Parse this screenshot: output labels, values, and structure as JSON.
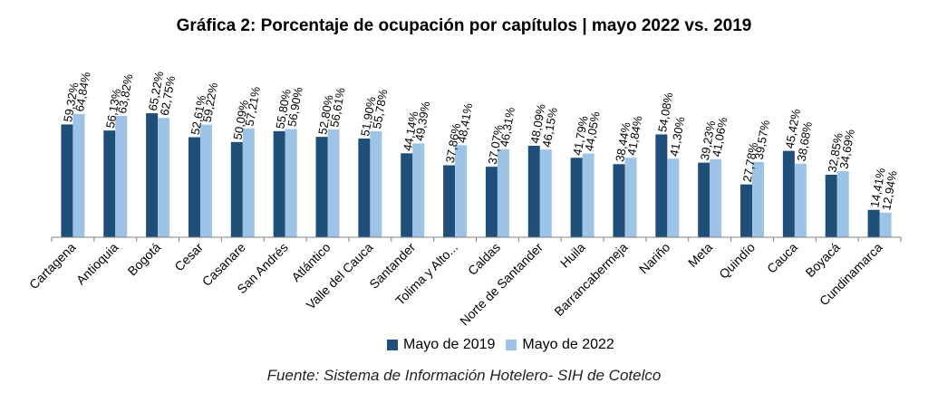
{
  "title": "Gráfica 2: Porcentaje de ocupación por capítulos | mayo 2022 vs. 2019",
  "source": "Fuente: Sistema de Información Hotelero- SIH de Cotelco",
  "colors": {
    "series_2019": "#1f4e79",
    "series_2022": "#9dc3e6",
    "axis": "#7f7f7f"
  },
  "chart_data": {
    "type": "bar",
    "title": "Gráfica 2: Porcentaje de ocupación por capítulos | mayo 2022 vs. 2019",
    "categories": [
      "Cartagena",
      "Antioquia",
      "Bogotá",
      "Cesar",
      "Casanare",
      "San Andrés",
      "Atlántico",
      "Valle del Cauca",
      "Santander",
      "Tolima y Alto...",
      "Caldas",
      "Norte de Santander",
      "Huila",
      "Barrancabermeja",
      "Nariño",
      "Meta",
      "Quindío",
      "Cauca",
      "Boyacá",
      "Cundinamarca"
    ],
    "series": [
      {
        "name": "Mayo de 2019",
        "values": [
          59.32,
          56.13,
          65.22,
          52.61,
          50.09,
          55.8,
          52.8,
          51.9,
          44.14,
          37.86,
          37.07,
          48.09,
          41.79,
          38.44,
          54.08,
          39.23,
          27.78,
          45.42,
          32.85,
          14.41
        ],
        "labels": [
          "59,32%",
          "56,13%",
          "65,22%",
          "52,61%",
          "50,09%",
          "55,80%",
          "52,80%",
          "51,90%",
          "44,14%",
          "37,86%",
          "37,07%",
          "48,09%",
          "41,79%",
          "38,44%",
          "54,08%",
          "39,23%",
          "27,78%",
          "45,42%",
          "32,85%",
          "14,41%"
        ]
      },
      {
        "name": "Mayo de 2022",
        "values": [
          64.84,
          63.82,
          62.75,
          59.22,
          57.21,
          56.9,
          56.61,
          55.78,
          49.39,
          48.41,
          46.31,
          46.15,
          44.05,
          41.84,
          41.3,
          41.06,
          39.57,
          38.68,
          34.69,
          12.94
        ],
        "labels": [
          "64,84%",
          "63,82%",
          "62,75%",
          "59,22%",
          "57,21%",
          "56,90%",
          "56,61%",
          "55,78%",
          "49,39%",
          "48,41%",
          "46,31%",
          "46,15%",
          "44,05%",
          "41,84%",
          "41,30%",
          "41,06%",
          "39,57%",
          "38,68%",
          "34,69%",
          "12,94%"
        ]
      }
    ],
    "ylim": [
      0,
      70
    ],
    "legend_position": "bottom",
    "grid": false
  }
}
